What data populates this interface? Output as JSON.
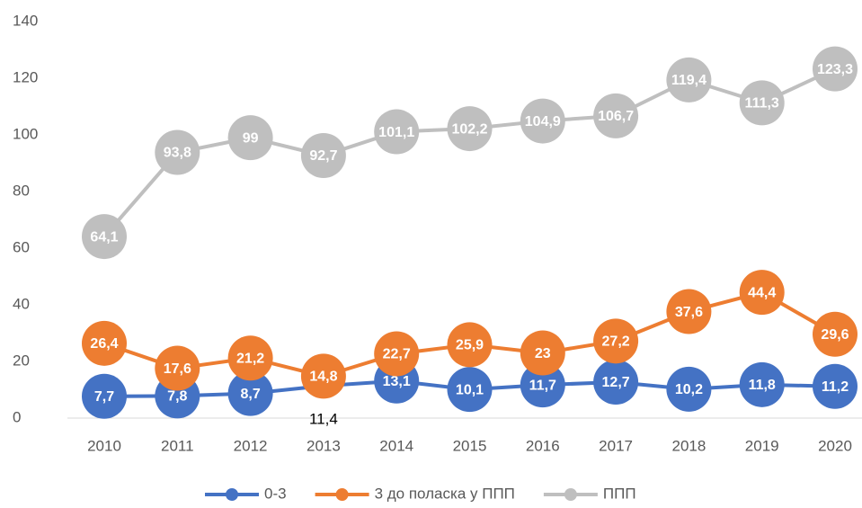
{
  "chart_data": {
    "type": "line",
    "categories": [
      "2010",
      "2011",
      "2012",
      "2013",
      "2014",
      "2015",
      "2016",
      "2017",
      "2018",
      "2019",
      "2020"
    ],
    "series": [
      {
        "name": "0-3",
        "color": "#4472c4",
        "values": [
          7.7,
          7.8,
          8.7,
          11.4,
          13.1,
          10.1,
          11.7,
          12.7,
          10.2,
          11.8,
          11.2
        ],
        "value_labels": [
          "7,7",
          "7,8",
          "8,7",
          "11,4",
          "13,1",
          "10,1",
          "11,7",
          "12,7",
          "10,2",
          "11,8",
          "11,2"
        ]
      },
      {
        "name": "3 до поласка у ППП",
        "color": "#ed7d31",
        "values": [
          26.4,
          17.6,
          21.2,
          14.8,
          22.7,
          25.9,
          23,
          27.2,
          37.6,
          44.4,
          29.6
        ],
        "value_labels": [
          "26,4",
          "17,6",
          "21,2",
          "14,8",
          "22,7",
          "25,9",
          "23",
          "27,2",
          "37,6",
          "44,4",
          "29,6"
        ]
      },
      {
        "name": "ППП",
        "color": "#bfbfbf",
        "values": [
          64.1,
          93.8,
          99,
          92.7,
          101.1,
          102.2,
          104.9,
          106.7,
          119.4,
          111.3,
          123.3
        ],
        "value_labels": [
          "64,1",
          "93,8",
          "99",
          "92,7",
          "101,1",
          "102,2",
          "104,9",
          "106,7",
          "119,4",
          "111,3",
          "123,3"
        ]
      }
    ],
    "ylim": [
      0,
      140
    ],
    "yticks": [
      0,
      20,
      40,
      60,
      80,
      100,
      120,
      140
    ],
    "grid": false,
    "legend": "bottom"
  }
}
